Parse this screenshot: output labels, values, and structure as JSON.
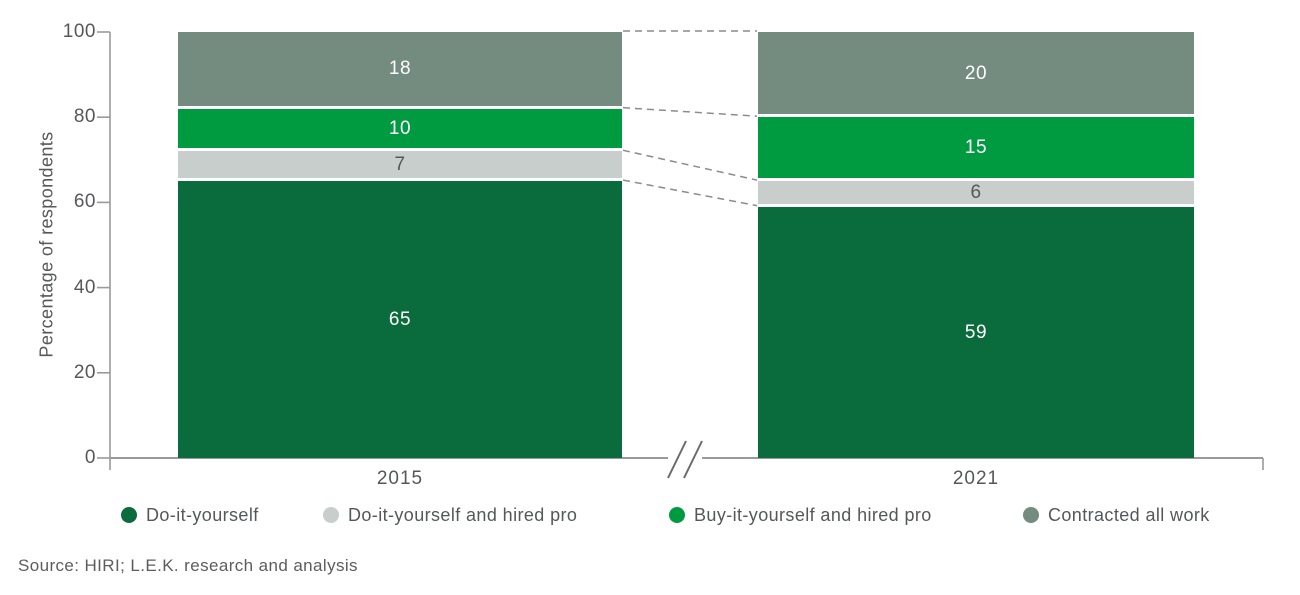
{
  "chart_data": {
    "type": "bar",
    "variant": "stacked-100-percent",
    "categories": [
      "2015",
      "2021"
    ],
    "series": [
      {
        "name": "Do-it-yourself",
        "color": "#0a6b3d",
        "text_color": "#ffffff",
        "values": [
          65,
          59
        ]
      },
      {
        "name": "Do-it-yourself and hired pro",
        "color": "#c7cecc",
        "text_color": "#55585a",
        "values": [
          7,
          6
        ]
      },
      {
        "name": "Buy-it-yourself and hired pro",
        "color": "#009b40",
        "text_color": "#ffffff",
        "values": [
          10,
          15
        ]
      },
      {
        "name": "Contracted all work",
        "color": "#748b80",
        "text_color": "#ffffff",
        "values": [
          18,
          20
        ]
      }
    ],
    "ylabel": "Percentage of respondents",
    "ylim": [
      0,
      100
    ],
    "yticks": [
      0,
      20,
      40,
      60,
      80,
      100
    ],
    "grid": false,
    "legend_position": "bottom",
    "axis_break_between_bars": true,
    "dashed_connectors_between_segment_boundaries": true
  },
  "source": "Source: HIRI; L.E.K. research and analysis",
  "colors": {
    "axis_line": "#9a9a9a",
    "tick_text": "#55585a",
    "dashed_connector": "#8c8c8c",
    "break_slash": "#6b6b6b",
    "segment_gap": "#ffffff",
    "background": "#ffffff"
  }
}
